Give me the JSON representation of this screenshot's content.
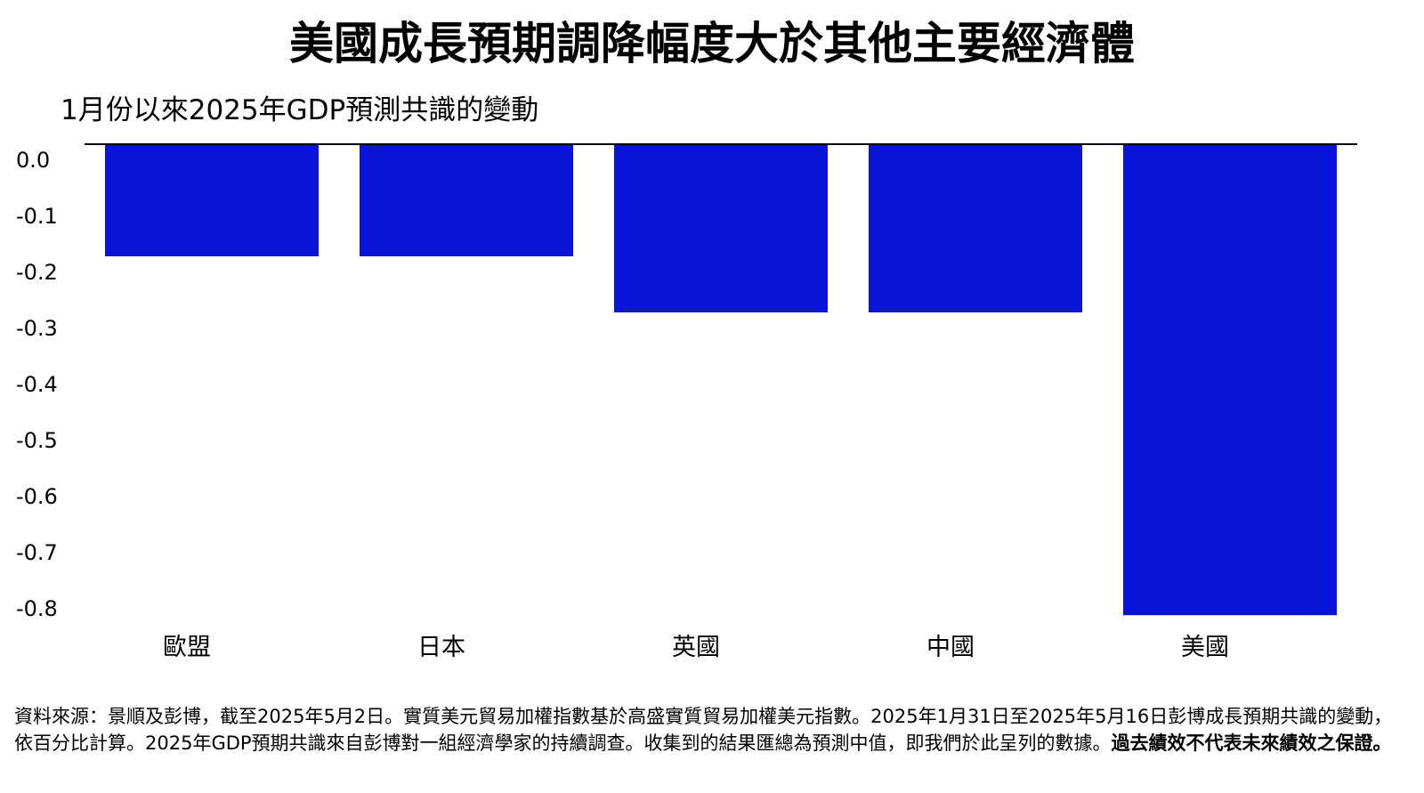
{
  "title": "美國成長預期調降幅度大於其他主要經濟體",
  "subtitle": "1月份以來2025年GDP預測共識的變動",
  "colors": {
    "bar": "#0A14D9",
    "axis": "#000000"
  },
  "chart_data": {
    "type": "bar",
    "title": "美國成長預期調降幅度大於其他主要經濟體",
    "subtitle": "1月份以來2025年GDP預測共識的變動",
    "categories": [
      "歐盟",
      "日本",
      "英國",
      "中國",
      "美國"
    ],
    "values": [
      -0.2,
      -0.2,
      -0.3,
      -0.3,
      -0.84
    ],
    "yticks": [
      "0.0",
      "-0.1",
      "-0.2",
      "-0.3",
      "-0.4",
      "-0.5",
      "-0.6",
      "-0.7",
      "-0.8"
    ],
    "ylim": [
      -0.84,
      0.0
    ],
    "grid": false,
    "legend": "none"
  },
  "footnote": {
    "text": "資料來源：景順及彭博，截至2025年5月2日。實質美元貿易加權指數基於高盛實質貿易加權美元指數。2025年1月31日至2025年5月16日彭博成長預期共識的變動，依百分比計算。2025年GDP預期共識來自彭博對一組經濟學家的持續調查。收集到的結果匯總為預測中值，即我們於此呈列的數據。",
    "bold": "過去績效不代表未來績效之保證。"
  }
}
